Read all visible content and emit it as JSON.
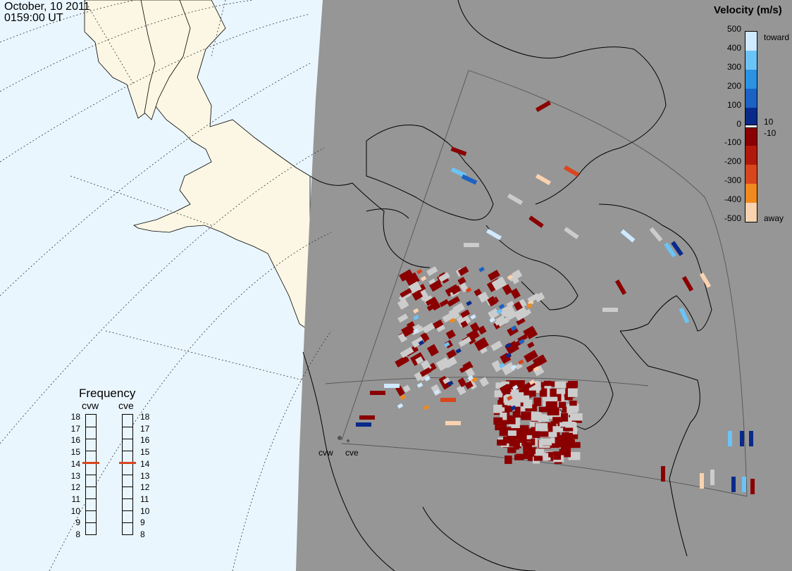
{
  "header": {
    "date": "October, 10 2011",
    "time": "0159:00 UT"
  },
  "velocity_legend": {
    "title": "Velocity (m/s)",
    "ticks": [
      "500",
      "400",
      "300",
      "200",
      "100",
      "0",
      "-100",
      "-200",
      "-300",
      "-400",
      "-500"
    ],
    "inner_ticks": [
      "10",
      "-10"
    ],
    "toward_label": "toward",
    "away_label": "away",
    "colors": [
      "#cfe9ff",
      "#6cc3f6",
      "#2b93e3",
      "#1a62c4",
      "#0a2a8a",
      "#8a0000",
      "#b11a0a",
      "#d9461e",
      "#f08a1e",
      "#f9d2b0"
    ]
  },
  "frequency_panel": {
    "title": "Frequency",
    "radars": [
      {
        "label": "cvw",
        "value": "15"
      },
      {
        "label": "cve",
        "value": "15"
      }
    ],
    "ticks": [
      "18",
      "17",
      "16",
      "15",
      "14",
      "13",
      "12",
      "11",
      "10",
      "9",
      "8"
    ],
    "marker_color": "#d9461e"
  },
  "radar_sites": {
    "west_label": "cvw",
    "east_label": "cve"
  },
  "map_colors": {
    "land": "#fbf7e4",
    "ocean": "#eaf6fe",
    "night": "#969696",
    "ground_scatter": "#cccccc"
  }
}
